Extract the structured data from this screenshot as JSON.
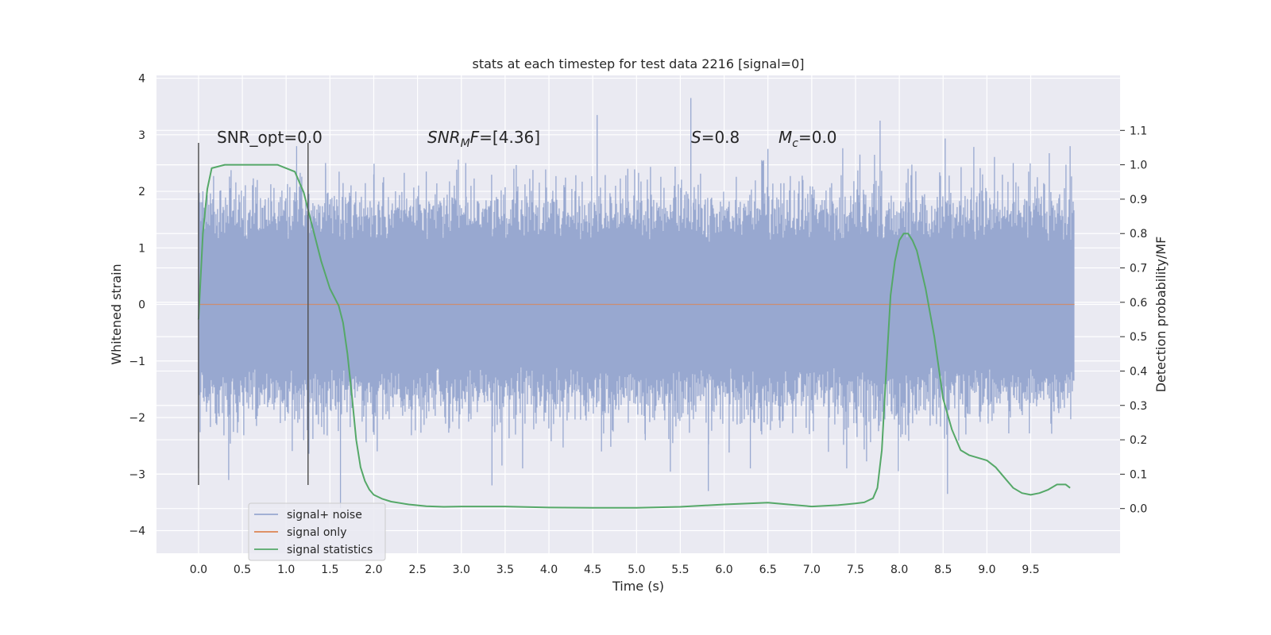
{
  "chart_data": {
    "type": "line",
    "title": "stats at each timestep for test data 2216 [signal=0]",
    "xlabel": "Time (s)",
    "ylabel": "Whitened strain",
    "y2label": "Detection probability/MF",
    "xlim": [
      -0.48,
      10.52
    ],
    "ylim": [
      -4.4,
      4.05
    ],
    "y2lim": [
      -0.13,
      1.26
    ],
    "x_ticks": [
      "0.0",
      "0.5",
      "1.0",
      "1.5",
      "2.0",
      "2.5",
      "3.0",
      "3.5",
      "4.0",
      "4.5",
      "5.0",
      "5.5",
      "6.0",
      "6.5",
      "7.0",
      "7.5",
      "8.0",
      "8.5",
      "9.0",
      "9.5"
    ],
    "y_ticks": [
      "4",
      "3",
      "2",
      "1",
      "0",
      "−1",
      "−2",
      "−3",
      "−4"
    ],
    "y2_ticks": [
      "1.1",
      "1.0",
      "0.9",
      "0.8",
      "0.7",
      "0.6",
      "0.5",
      "0.4",
      "0.3",
      "0.2",
      "0.1",
      "0.0"
    ],
    "grid": true,
    "legend_position": "lower-left",
    "annotations": {
      "snr_opt": "SNR_opt=0.0",
      "snr_mf_pre": "SNR",
      "snr_mf_sub": "M",
      "snr_mf_post": "F=[4.36]",
      "s_var": "S",
      "s_val": "=0.8",
      "mc_var": "M",
      "mc_sub": "c",
      "mc_val": "=0.0"
    },
    "vlines": [
      0.0,
      1.25
    ],
    "colors": {
      "noise": "#98a8d0",
      "signal": "#dd8452",
      "stat": "#55a868",
      "vline": "#555555",
      "bg": "#eaeaf2"
    },
    "series": [
      {
        "name": "signal+ noise",
        "t_range": [
          0.0,
          10.0
        ],
        "envelope_typical": 1.3,
        "spikes": [
          [
            0.0,
            1.55
          ],
          [
            0.0,
            -2.9
          ],
          [
            0.05,
            2.0
          ],
          [
            1.12,
            2.8
          ],
          [
            1.2,
            -2.4
          ],
          [
            1.62,
            -3.6
          ],
          [
            1.45,
            2.5
          ],
          [
            2.0,
            2.3
          ],
          [
            2.6,
            2.35
          ],
          [
            3.05,
            2.5
          ],
          [
            3.35,
            -3.2
          ],
          [
            3.6,
            2.4
          ],
          [
            3.7,
            -2.9
          ],
          [
            4.55,
            3.35
          ],
          [
            4.6,
            -2.6
          ],
          [
            4.9,
            2.4
          ],
          [
            5.1,
            -2.4
          ],
          [
            5.62,
            3.65
          ],
          [
            5.82,
            -3.3
          ],
          [
            6.3,
            -2.9
          ],
          [
            6.45,
            2.55
          ],
          [
            6.5,
            2.75
          ],
          [
            6.9,
            2.2
          ],
          [
            7.4,
            -2.9
          ],
          [
            7.55,
            2.65
          ],
          [
            7.78,
            3.25
          ],
          [
            8.1,
            2.4
          ],
          [
            8.55,
            -3.35
          ],
          [
            9.3,
            2.5
          ],
          [
            9.95,
            2.8
          ]
        ]
      },
      {
        "name": "signal only",
        "x": [
          0.0,
          10.0
        ],
        "y": [
          0.0,
          0.0
        ]
      },
      {
        "name": "signal statistics",
        "x": [
          0.0,
          0.05,
          0.1,
          0.15,
          0.3,
          0.5,
          0.7,
          0.9,
          1.0,
          1.1,
          1.2,
          1.3,
          1.4,
          1.5,
          1.6,
          1.65,
          1.7,
          1.75,
          1.8,
          1.85,
          1.9,
          1.95,
          2.0,
          2.1,
          2.2,
          2.4,
          2.6,
          2.8,
          3.0,
          3.5,
          4.0,
          4.5,
          5.0,
          5.5,
          6.0,
          6.5,
          7.0,
          7.3,
          7.5,
          7.6,
          7.7,
          7.75,
          7.8,
          7.85,
          7.9,
          7.95,
          8.0,
          8.05,
          8.1,
          8.15,
          8.2,
          8.3,
          8.4,
          8.5,
          8.6,
          8.7,
          8.8,
          9.0,
          9.1,
          9.2,
          9.3,
          9.4,
          9.5,
          9.6,
          9.7,
          9.8,
          9.9,
          9.95
        ],
        "y": [
          0.55,
          0.8,
          0.93,
          0.99,
          1.0,
          1.0,
          1.0,
          1.0,
          0.99,
          0.98,
          0.92,
          0.82,
          0.72,
          0.64,
          0.59,
          0.54,
          0.45,
          0.33,
          0.2,
          0.12,
          0.08,
          0.055,
          0.04,
          0.028,
          0.02,
          0.012,
          0.007,
          0.005,
          0.006,
          0.006,
          0.003,
          0.002,
          0.002,
          0.005,
          0.012,
          0.017,
          0.006,
          0.01,
          0.015,
          0.018,
          0.03,
          0.06,
          0.17,
          0.4,
          0.62,
          0.72,
          0.78,
          0.8,
          0.8,
          0.78,
          0.75,
          0.64,
          0.5,
          0.32,
          0.23,
          0.17,
          0.155,
          0.14,
          0.12,
          0.09,
          0.06,
          0.045,
          0.04,
          0.045,
          0.055,
          0.07,
          0.07,
          0.06
        ]
      }
    ]
  }
}
